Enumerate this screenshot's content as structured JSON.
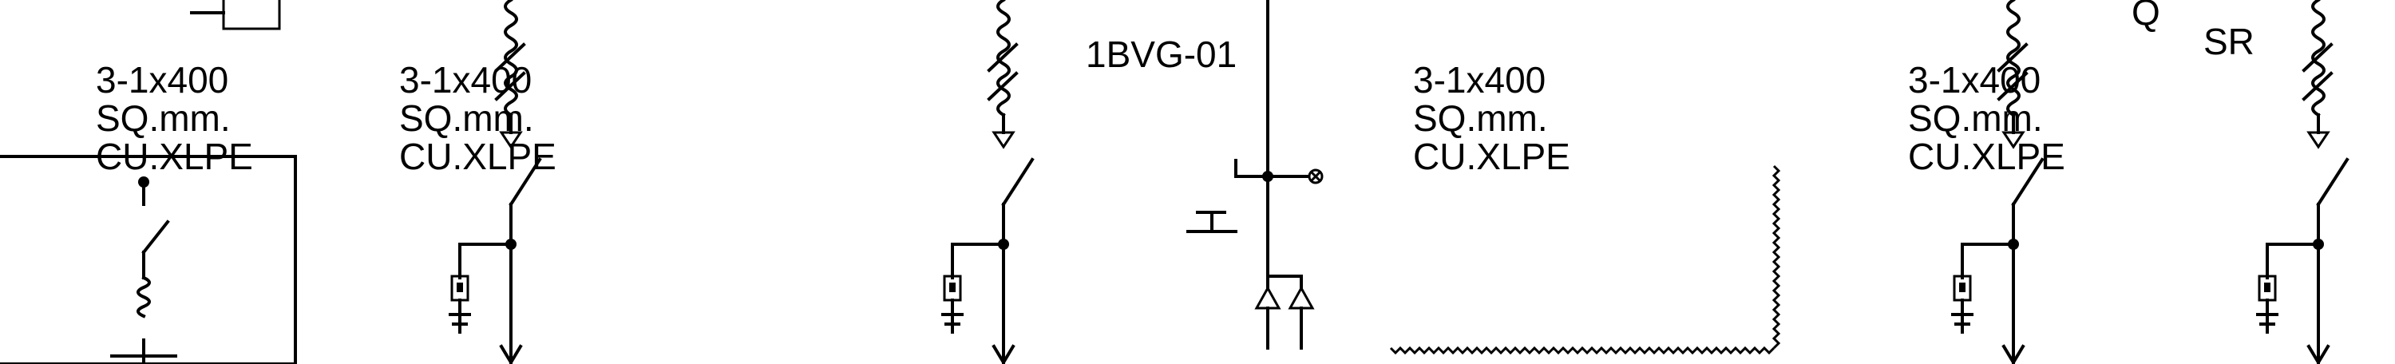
{
  "feeders": [
    {
      "id": "f1",
      "cable": {
        "line1": "3-1x400",
        "line2": "SQ.mm.",
        "line3": "CU.XLPE"
      }
    },
    {
      "id": "f2",
      "cable": {
        "line1": "3-1x400",
        "line2": "SQ.mm.",
        "line3": "CU.XLPE"
      }
    },
    {
      "id": "f3",
      "cable": {
        "line1": "3-1x400",
        "line2": "SQ.mm.",
        "line3": "CU.XLPE"
      }
    },
    {
      "id": "f4",
      "cable": {
        "line1": "3-1x400",
        "line2": "SQ.mm.",
        "line3": "CU.XLPE"
      }
    }
  ],
  "equipment": {
    "vt_tag": "1BVG-01",
    "relay_symbol": "SR",
    "aux_box_label": "Q"
  },
  "colors": {
    "ink": "#000000",
    "background": "#ffffff"
  }
}
